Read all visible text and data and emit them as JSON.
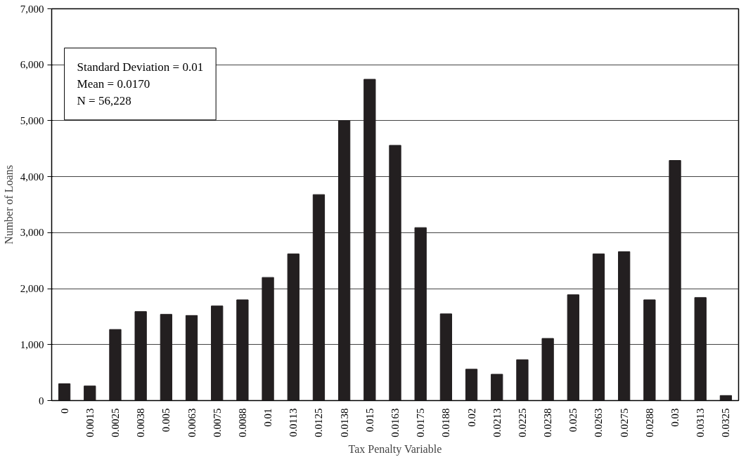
{
  "chart_data": {
    "type": "bar",
    "xlabel": "Tax Penalty Variable",
    "ylabel": "Number of Loans",
    "categories": [
      "0",
      "0.0013",
      "0.0025",
      "0.0038",
      "0.005",
      "0.0063",
      "0.0075",
      "0.0088",
      "0.01",
      "0.0113",
      "0.0125",
      "0.0138",
      "0.015",
      "0.0163",
      "0.0175",
      "0.0188",
      "0.02",
      "0.0213",
      "0.0225",
      "0.0238",
      "0.025",
      "0.0263",
      "0.0275",
      "0.0288",
      "0.03",
      "0.0313",
      "0.0325"
    ],
    "values": [
      300,
      260,
      1270,
      1590,
      1540,
      1520,
      1690,
      1800,
      2200,
      2620,
      3680,
      5000,
      5740,
      4560,
      3090,
      1550,
      560,
      470,
      730,
      1110,
      1890,
      2620,
      2660,
      1800,
      4290,
      1840,
      90
    ],
    "color": "#231f20",
    "ylim": [
      0,
      7000
    ],
    "yticks": [
      {
        "value": 0,
        "label": "0"
      },
      {
        "value": 1000,
        "label": "1,000"
      },
      {
        "value": 2000,
        "label": "2,000"
      },
      {
        "value": 3000,
        "label": "3,000"
      },
      {
        "value": 4000,
        "label": "4,000"
      },
      {
        "value": 5000,
        "label": "5,000"
      },
      {
        "value": 6000,
        "label": "6,000"
      },
      {
        "value": 7000,
        "label": "7,000"
      }
    ],
    "grid": "y",
    "annotations": [
      "Standard Deviation = 0.01",
      "Mean = 0.0170",
      "N = 56,228"
    ]
  }
}
